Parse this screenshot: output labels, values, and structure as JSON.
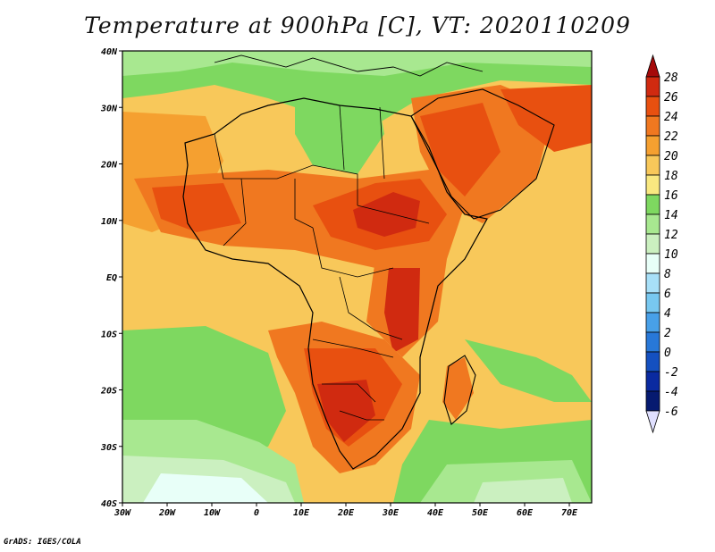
{
  "title": "Temperature at 900hPa [C], VT: 2020110209",
  "credit": "GrADS: IGES/COLA",
  "map": {
    "lat_labels": [
      "40N",
      "30N",
      "20N",
      "10N",
      "EQ",
      "10S",
      "20S",
      "30S",
      "40S"
    ],
    "lon_labels": [
      "30W",
      "20W",
      "10W",
      "0",
      "10E",
      "20E",
      "30E",
      "40E",
      "50E",
      "60E",
      "70E"
    ]
  },
  "colorbar": {
    "values": [
      "28",
      "26",
      "24",
      "22",
      "20",
      "18",
      "16",
      "14",
      "12",
      "10",
      "8",
      "6",
      "4",
      "2",
      "0",
      "-2",
      "-4",
      "-6"
    ],
    "colors": [
      "#a50a0a",
      "#d02a10",
      "#e85010",
      "#f07820",
      "#f5a030",
      "#f8c85a",
      "#f9e880",
      "#7ed860",
      "#a8e890",
      "#cbf0c0",
      "#e8fff8",
      "#a8e0f8",
      "#78c8f0",
      "#48a0e8",
      "#2878d8",
      "#1450c0",
      "#0a2aa0",
      "#061a70",
      "#e0e0ff"
    ]
  }
}
